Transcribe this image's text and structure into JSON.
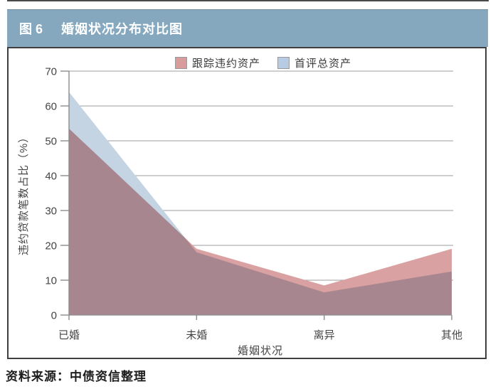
{
  "header": {
    "figure_label": "图 6",
    "title": "婚姻状况分布对比图",
    "bg_color": "#85A8BF"
  },
  "chart_data": {
    "type": "area",
    "categories": [
      "已婚",
      "未婚",
      "离异",
      "其他"
    ],
    "series": [
      {
        "name": "跟踪违约资产",
        "color": "#D9A1A1",
        "swatch_color": "#D89C9C",
        "values": [
          53.5,
          19,
          8.5,
          19
        ]
      },
      {
        "name": "首评总资产",
        "color": "#C5D4E2",
        "swatch_color": "#B7CCE2",
        "values": [
          64,
          18,
          6.5,
          12.5
        ]
      }
    ],
    "xlabel": "婚姻状况",
    "ylabel": "违约贷款笔数占比（%）",
    "ylim": [
      0,
      70
    ],
    "yticks": [
      0,
      10,
      20,
      30,
      40,
      50,
      60,
      70
    ],
    "grid": true,
    "legend_position": "top",
    "overlap_color": "#998CA0",
    "gridline_color": "#9d9d9d",
    "axis_color": "#8c8c8c"
  },
  "source_note": "资料来源：中债资信整理"
}
